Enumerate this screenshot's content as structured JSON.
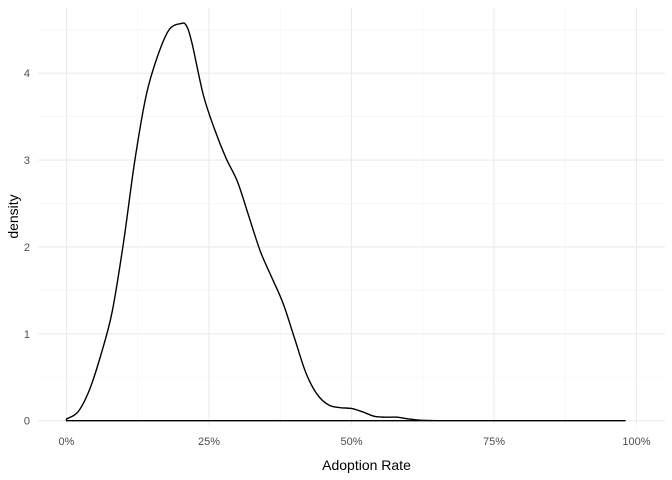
{
  "chart_data": {
    "type": "area",
    "xlabel": "Adoption Rate",
    "ylabel": "density",
    "xlim": [
      -0.05,
      1.05
    ],
    "ylim": [
      -0.05,
      4.75
    ],
    "x_ticks": [
      0,
      0.25,
      0.5,
      0.75,
      1.0
    ],
    "x_tick_labels": [
      "0%",
      "25%",
      "50%",
      "75%",
      "100%"
    ],
    "y_ticks": [
      0,
      1,
      2,
      3,
      4
    ],
    "y_tick_labels": [
      "0",
      "1",
      "2",
      "3",
      "4"
    ],
    "grid": true,
    "legend": "none",
    "line_color": "#000000",
    "series": [
      {
        "x": [
          0,
          0.02,
          0.04,
          0.06,
          0.08,
          0.1,
          0.12,
          0.14,
          0.16,
          0.18,
          0.2,
          0.21,
          0.22,
          0.24,
          0.26,
          0.28,
          0.3,
          0.32,
          0.34,
          0.36,
          0.38,
          0.4,
          0.42,
          0.44,
          0.46,
          0.48,
          0.5,
          0.52,
          0.54,
          0.56,
          0.58,
          0.6,
          0.62,
          0.65,
          0.7,
          0.8,
          0.9,
          0.98
        ],
        "y": [
          0.02,
          0.1,
          0.35,
          0.75,
          1.25,
          2.05,
          3.0,
          3.75,
          4.2,
          4.5,
          4.57,
          4.55,
          4.35,
          3.75,
          3.35,
          3.02,
          2.75,
          2.35,
          1.95,
          1.65,
          1.35,
          0.95,
          0.55,
          0.3,
          0.18,
          0.15,
          0.14,
          0.1,
          0.05,
          0.04,
          0.04,
          0.02,
          0.005,
          0.0,
          0.0,
          0.0,
          0.0,
          0.0
        ]
      }
    ]
  }
}
